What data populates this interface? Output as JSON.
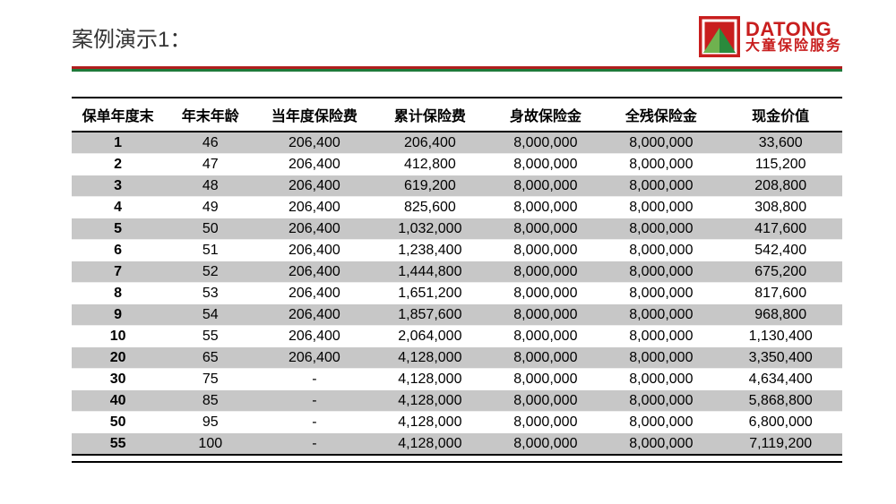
{
  "page": {
    "title": "案例演示1：",
    "logo": {
      "en": "DATONG",
      "cn": "大童保险服务",
      "mark_bg": "#c81e1e",
      "mark_accent": "#2a8a3c",
      "mark_light": "#ffffff"
    }
  },
  "colors": {
    "divider_red": "#b01e1e",
    "divider_green": "#1f7a3a",
    "row_odd_bg": "#c7c7c7",
    "row_even_bg": "#ffffff",
    "text": "#000000",
    "header_border": "#000000",
    "brand_red": "#c81e1e"
  },
  "table": {
    "columns": [
      "保单年度末",
      "年末年龄",
      "当年度保险费",
      "累计保险费",
      "身故保险金",
      "全残保险金",
      "现金价值"
    ],
    "col_widths_pct": [
      12,
      12,
      15,
      15,
      15,
      15,
      16
    ],
    "rows": [
      {
        "year": "1",
        "age": "46",
        "premium": "206,400",
        "cum": "206,400",
        "death": "8,000,000",
        "disab": "8,000,000",
        "cash": "33,600"
      },
      {
        "year": "2",
        "age": "47",
        "premium": "206,400",
        "cum": "412,800",
        "death": "8,000,000",
        "disab": "8,000,000",
        "cash": "115,200"
      },
      {
        "year": "3",
        "age": "48",
        "premium": "206,400",
        "cum": "619,200",
        "death": "8,000,000",
        "disab": "8,000,000",
        "cash": "208,800"
      },
      {
        "year": "4",
        "age": "49",
        "premium": "206,400",
        "cum": "825,600",
        "death": "8,000,000",
        "disab": "8,000,000",
        "cash": "308,800"
      },
      {
        "year": "5",
        "age": "50",
        "premium": "206,400",
        "cum": "1,032,000",
        "death": "8,000,000",
        "disab": "8,000,000",
        "cash": "417,600"
      },
      {
        "year": "6",
        "age": "51",
        "premium": "206,400",
        "cum": "1,238,400",
        "death": "8,000,000",
        "disab": "8,000,000",
        "cash": "542,400"
      },
      {
        "year": "7",
        "age": "52",
        "premium": "206,400",
        "cum": "1,444,800",
        "death": "8,000,000",
        "disab": "8,000,000",
        "cash": "675,200"
      },
      {
        "year": "8",
        "age": "53",
        "premium": "206,400",
        "cum": "1,651,200",
        "death": "8,000,000",
        "disab": "8,000,000",
        "cash": "817,600"
      },
      {
        "year": "9",
        "age": "54",
        "premium": "206,400",
        "cum": "1,857,600",
        "death": "8,000,000",
        "disab": "8,000,000",
        "cash": "968,800"
      },
      {
        "year": "10",
        "age": "55",
        "premium": "206,400",
        "cum": "2,064,000",
        "death": "8,000,000",
        "disab": "8,000,000",
        "cash": "1,130,400"
      },
      {
        "year": "20",
        "age": "65",
        "premium": "206,400",
        "cum": "4,128,000",
        "death": "8,000,000",
        "disab": "8,000,000",
        "cash": "3,350,400"
      },
      {
        "year": "30",
        "age": "75",
        "premium": "-",
        "cum": "4,128,000",
        "death": "8,000,000",
        "disab": "8,000,000",
        "cash": "4,634,400"
      },
      {
        "year": "40",
        "age": "85",
        "premium": "-",
        "cum": "4,128,000",
        "death": "8,000,000",
        "disab": "8,000,000",
        "cash": "5,868,800"
      },
      {
        "year": "50",
        "age": "95",
        "premium": "-",
        "cum": "4,128,000",
        "death": "8,000,000",
        "disab": "8,000,000",
        "cash": "6,800,000"
      },
      {
        "year": "55",
        "age": "100",
        "premium": "-",
        "cum": "4,128,000",
        "death": "8,000,000",
        "disab": "8,000,000",
        "cash": "7,119,200"
      }
    ]
  }
}
